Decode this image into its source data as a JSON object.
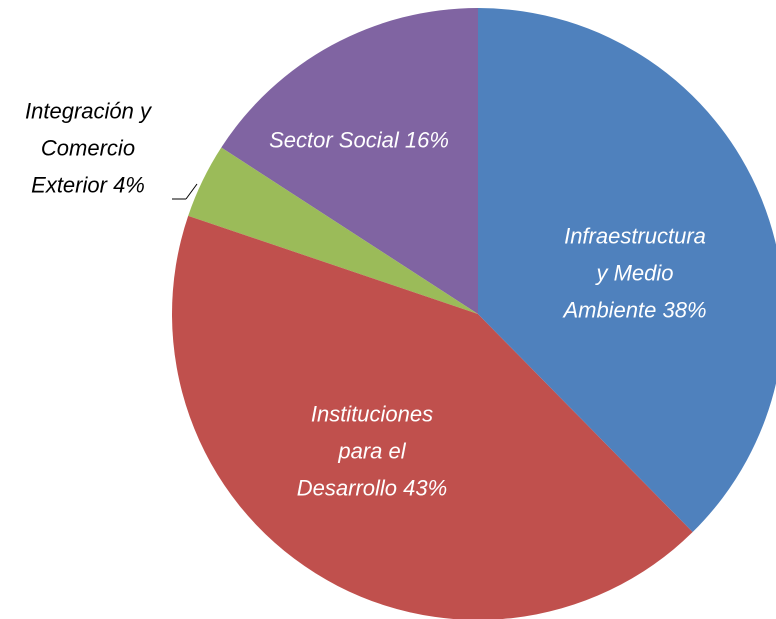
{
  "chart_data": {
    "type": "pie",
    "categories": [
      "Infraestructura\ny Medio\nAmbiente",
      "Instituciones\npara el\nDesarrollo",
      "Integración y\nComercio\nExterior",
      "Sector Social"
    ],
    "values": [
      38,
      43,
      4,
      16
    ],
    "value_labels": [
      "38%",
      "43%",
      "4%",
      "16%"
    ],
    "colors": [
      "#4F81BD",
      "#C0504D",
      "#9BBB59",
      "#8064A2"
    ]
  }
}
